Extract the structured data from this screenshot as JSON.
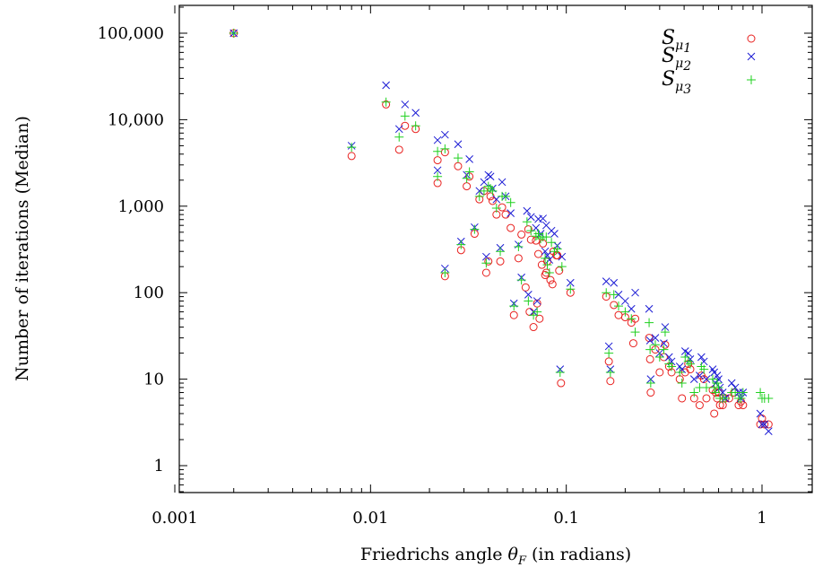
{
  "chart_data": {
    "type": "scatter",
    "title": "",
    "xlabel_prefix": "Friedrichs angle ",
    "xlabel_symbol": "θ",
    "xlabel_sub": "F",
    "xlabel_suffix": " (in radians)",
    "ylabel": "Number of iterations (Median)",
    "x_scale": "log",
    "y_scale": "log",
    "xlim": [
      0.001,
      2
    ],
    "ylim": [
      0.5,
      300000
    ],
    "x_ticks": [
      {
        "value": 0.001,
        "label": "0.001"
      },
      {
        "value": 0.01,
        "label": "0.01"
      },
      {
        "value": 0.1,
        "label": "0.1"
      },
      {
        "value": 1,
        "label": "1"
      }
    ],
    "y_ticks": [
      {
        "value": 1,
        "label": "1"
      },
      {
        "value": 10,
        "label": "10"
      },
      {
        "value": 100,
        "label": "100"
      },
      {
        "value": 1000,
        "label": "1,000"
      },
      {
        "value": 10000,
        "label": "10,000"
      },
      {
        "value": 100000,
        "label": "100,000"
      }
    ],
    "grid": false,
    "legend_position": "top-right",
    "series": [
      {
        "name_main": "S",
        "name_sub": "μ",
        "name_subsub": "1",
        "marker": "circle",
        "color": "#e8201e",
        "points": [
          [
            0.002,
            100000
          ],
          [
            0.008,
            3800
          ],
          [
            0.012,
            15000
          ],
          [
            0.014,
            4500
          ],
          [
            0.015,
            8500
          ],
          [
            0.017,
            7800
          ],
          [
            0.022,
            3400
          ],
          [
            0.022,
            1850
          ],
          [
            0.024,
            4200
          ],
          [
            0.024,
            155
          ],
          [
            0.028,
            2900
          ],
          [
            0.029,
            310
          ],
          [
            0.031,
            1700
          ],
          [
            0.032,
            2200
          ],
          [
            0.034,
            480
          ],
          [
            0.036,
            1200
          ],
          [
            0.038,
            1500
          ],
          [
            0.039,
            170
          ],
          [
            0.04,
            230
          ],
          [
            0.041,
            1300
          ],
          [
            0.042,
            1150
          ],
          [
            0.044,
            800
          ],
          [
            0.046,
            230
          ],
          [
            0.047,
            970
          ],
          [
            0.049,
            800
          ],
          [
            0.052,
            560
          ],
          [
            0.054,
            55
          ],
          [
            0.057,
            250
          ],
          [
            0.059,
            470
          ],
          [
            0.062,
            115
          ],
          [
            0.064,
            540
          ],
          [
            0.065,
            60
          ],
          [
            0.066,
            410
          ],
          [
            0.068,
            40
          ],
          [
            0.07,
            400
          ],
          [
            0.071,
            75
          ],
          [
            0.072,
            280
          ],
          [
            0.073,
            50
          ],
          [
            0.075,
            210
          ],
          [
            0.076,
            370
          ],
          [
            0.078,
            160
          ],
          [
            0.079,
            170
          ],
          [
            0.08,
            230
          ],
          [
            0.083,
            140
          ],
          [
            0.085,
            125
          ],
          [
            0.086,
            300
          ],
          [
            0.089,
            270
          ],
          [
            0.09,
            270
          ],
          [
            0.092,
            180
          ],
          [
            0.094,
            9
          ],
          [
            0.105,
            100
          ],
          [
            0.16,
            90
          ],
          [
            0.165,
            16
          ],
          [
            0.168,
            9.5
          ],
          [
            0.175,
            72
          ],
          [
            0.185,
            55
          ],
          [
            0.2,
            52
          ],
          [
            0.215,
            45
          ],
          [
            0.22,
            26
          ],
          [
            0.225,
            50
          ],
          [
            0.265,
            30
          ],
          [
            0.268,
            17
          ],
          [
            0.27,
            7
          ],
          [
            0.285,
            22
          ],
          [
            0.3,
            12
          ],
          [
            0.315,
            18
          ],
          [
            0.32,
            25
          ],
          [
            0.335,
            14
          ],
          [
            0.345,
            12
          ],
          [
            0.38,
            10
          ],
          [
            0.39,
            6
          ],
          [
            0.405,
            12
          ],
          [
            0.42,
            15
          ],
          [
            0.43,
            13
          ],
          [
            0.45,
            6
          ],
          [
            0.48,
            5
          ],
          [
            0.49,
            11
          ],
          [
            0.505,
            10
          ],
          [
            0.52,
            6
          ],
          [
            0.56,
            7.5
          ],
          [
            0.57,
            4
          ],
          [
            0.58,
            7
          ],
          [
            0.59,
            6
          ],
          [
            0.6,
            7
          ],
          [
            0.61,
            5
          ],
          [
            0.63,
            5
          ],
          [
            0.65,
            6
          ],
          [
            0.68,
            6
          ],
          [
            0.72,
            7
          ],
          [
            0.76,
            5
          ],
          [
            0.78,
            5.5
          ],
          [
            0.8,
            5
          ],
          [
            0.98,
            3
          ],
          [
            1.0,
            3.5
          ],
          [
            1.03,
            3
          ],
          [
            1.08,
            3
          ]
        ]
      },
      {
        "name_main": "S",
        "name_sub": "μ",
        "name_subsub": "2",
        "marker": "cross",
        "color": "#1a1ad4",
        "points": [
          [
            0.002,
            100000
          ],
          [
            0.008,
            5000
          ],
          [
            0.012,
            25000
          ],
          [
            0.014,
            7800
          ],
          [
            0.015,
            15000
          ],
          [
            0.017,
            12000
          ],
          [
            0.022,
            5800
          ],
          [
            0.022,
            2600
          ],
          [
            0.024,
            6700
          ],
          [
            0.024,
            190
          ],
          [
            0.028,
            5200
          ],
          [
            0.029,
            390
          ],
          [
            0.031,
            2300
          ],
          [
            0.032,
            3500
          ],
          [
            0.034,
            570
          ],
          [
            0.036,
            1500
          ],
          [
            0.038,
            1900
          ],
          [
            0.039,
            260
          ],
          [
            0.04,
            2300
          ],
          [
            0.041,
            2200
          ],
          [
            0.042,
            1600
          ],
          [
            0.044,
            1200
          ],
          [
            0.046,
            330
          ],
          [
            0.047,
            1900
          ],
          [
            0.049,
            1300
          ],
          [
            0.052,
            830
          ],
          [
            0.054,
            75
          ],
          [
            0.057,
            360
          ],
          [
            0.059,
            150
          ],
          [
            0.063,
            880
          ],
          [
            0.064,
            95
          ],
          [
            0.066,
            750
          ],
          [
            0.068,
            60
          ],
          [
            0.07,
            560
          ],
          [
            0.071,
            80
          ],
          [
            0.072,
            710
          ],
          [
            0.074,
            480
          ],
          [
            0.076,
            720
          ],
          [
            0.078,
            300
          ],
          [
            0.079,
            600
          ],
          [
            0.08,
            270
          ],
          [
            0.082,
            240
          ],
          [
            0.084,
            520
          ],
          [
            0.087,
            480
          ],
          [
            0.09,
            350
          ],
          [
            0.093,
            13
          ],
          [
            0.095,
            260
          ],
          [
            0.105,
            130
          ],
          [
            0.16,
            135
          ],
          [
            0.165,
            24
          ],
          [
            0.168,
            13
          ],
          [
            0.175,
            130
          ],
          [
            0.185,
            95
          ],
          [
            0.2,
            80
          ],
          [
            0.215,
            65
          ],
          [
            0.225,
            100
          ],
          [
            0.265,
            65
          ],
          [
            0.268,
            28
          ],
          [
            0.27,
            10
          ],
          [
            0.285,
            30
          ],
          [
            0.3,
            20
          ],
          [
            0.315,
            26
          ],
          [
            0.32,
            40
          ],
          [
            0.335,
            18
          ],
          [
            0.345,
            16
          ],
          [
            0.38,
            14
          ],
          [
            0.39,
            13
          ],
          [
            0.405,
            21
          ],
          [
            0.42,
            20
          ],
          [
            0.43,
            17
          ],
          [
            0.45,
            10
          ],
          [
            0.48,
            11
          ],
          [
            0.49,
            18
          ],
          [
            0.505,
            16
          ],
          [
            0.52,
            10
          ],
          [
            0.56,
            13
          ],
          [
            0.57,
            12
          ],
          [
            0.58,
            9
          ],
          [
            0.59,
            11
          ],
          [
            0.6,
            10
          ],
          [
            0.61,
            8
          ],
          [
            0.63,
            7
          ],
          [
            0.65,
            6
          ],
          [
            0.7,
            9
          ],
          [
            0.73,
            8
          ],
          [
            0.76,
            7
          ],
          [
            0.78,
            6
          ],
          [
            0.8,
            7
          ],
          [
            0.98,
            4
          ],
          [
            1.0,
            3
          ],
          [
            1.03,
            3
          ],
          [
            1.08,
            2.5
          ]
        ]
      },
      {
        "name_main": "S",
        "name_sub": "μ",
        "name_subsub": "3",
        "marker": "plus",
        "color": "#1fd01f",
        "points": [
          [
            0.002,
            100000
          ],
          [
            0.008,
            4800
          ],
          [
            0.012,
            16000
          ],
          [
            0.014,
            6300
          ],
          [
            0.015,
            11000
          ],
          [
            0.017,
            8500
          ],
          [
            0.022,
            4300
          ],
          [
            0.022,
            2200
          ],
          [
            0.024,
            4600
          ],
          [
            0.024,
            170
          ],
          [
            0.028,
            3600
          ],
          [
            0.029,
            360
          ],
          [
            0.031,
            2100
          ],
          [
            0.032,
            2500
          ],
          [
            0.034,
            540
          ],
          [
            0.036,
            1300
          ],
          [
            0.038,
            1500
          ],
          [
            0.039,
            220
          ],
          [
            0.04,
            1700
          ],
          [
            0.041,
            1600
          ],
          [
            0.042,
            1500
          ],
          [
            0.044,
            950
          ],
          [
            0.046,
            300
          ],
          [
            0.047,
            1300
          ],
          [
            0.049,
            1300
          ],
          [
            0.052,
            1100
          ],
          [
            0.054,
            70
          ],
          [
            0.057,
            340
          ],
          [
            0.059,
            140
          ],
          [
            0.063,
            660
          ],
          [
            0.064,
            80
          ],
          [
            0.066,
            520
          ],
          [
            0.068,
            55
          ],
          [
            0.07,
            450
          ],
          [
            0.071,
            60
          ],
          [
            0.072,
            480
          ],
          [
            0.074,
            420
          ],
          [
            0.076,
            440
          ],
          [
            0.078,
            250
          ],
          [
            0.079,
            440
          ],
          [
            0.08,
            210
          ],
          [
            0.082,
            170
          ],
          [
            0.084,
            380
          ],
          [
            0.087,
            300
          ],
          [
            0.09,
            320
          ],
          [
            0.093,
            12
          ],
          [
            0.095,
            200
          ],
          [
            0.105,
            110
          ],
          [
            0.16,
            100
          ],
          [
            0.165,
            20
          ],
          [
            0.168,
            12
          ],
          [
            0.175,
            95
          ],
          [
            0.185,
            70
          ],
          [
            0.2,
            60
          ],
          [
            0.215,
            50
          ],
          [
            0.225,
            35
          ],
          [
            0.265,
            45
          ],
          [
            0.268,
            22
          ],
          [
            0.27,
            9
          ],
          [
            0.285,
            25
          ],
          [
            0.3,
            18
          ],
          [
            0.315,
            22
          ],
          [
            0.32,
            35
          ],
          [
            0.335,
            15
          ],
          [
            0.345,
            14
          ],
          [
            0.38,
            12
          ],
          [
            0.39,
            9
          ],
          [
            0.405,
            18
          ],
          [
            0.42,
            16
          ],
          [
            0.43,
            15
          ],
          [
            0.45,
            7
          ],
          [
            0.48,
            8
          ],
          [
            0.49,
            14
          ],
          [
            0.505,
            13
          ],
          [
            0.52,
            8
          ],
          [
            0.56,
            10
          ],
          [
            0.57,
            8
          ],
          [
            0.58,
            7
          ],
          [
            0.59,
            9
          ],
          [
            0.6,
            8
          ],
          [
            0.61,
            6
          ],
          [
            0.63,
            6
          ],
          [
            0.65,
            6
          ],
          [
            0.7,
            7
          ],
          [
            0.73,
            7
          ],
          [
            0.76,
            6
          ],
          [
            0.78,
            6
          ],
          [
            0.8,
            7
          ],
          [
            0.98,
            7
          ],
          [
            1.0,
            6
          ],
          [
            1.03,
            6
          ],
          [
            1.08,
            6
          ]
        ]
      }
    ]
  }
}
